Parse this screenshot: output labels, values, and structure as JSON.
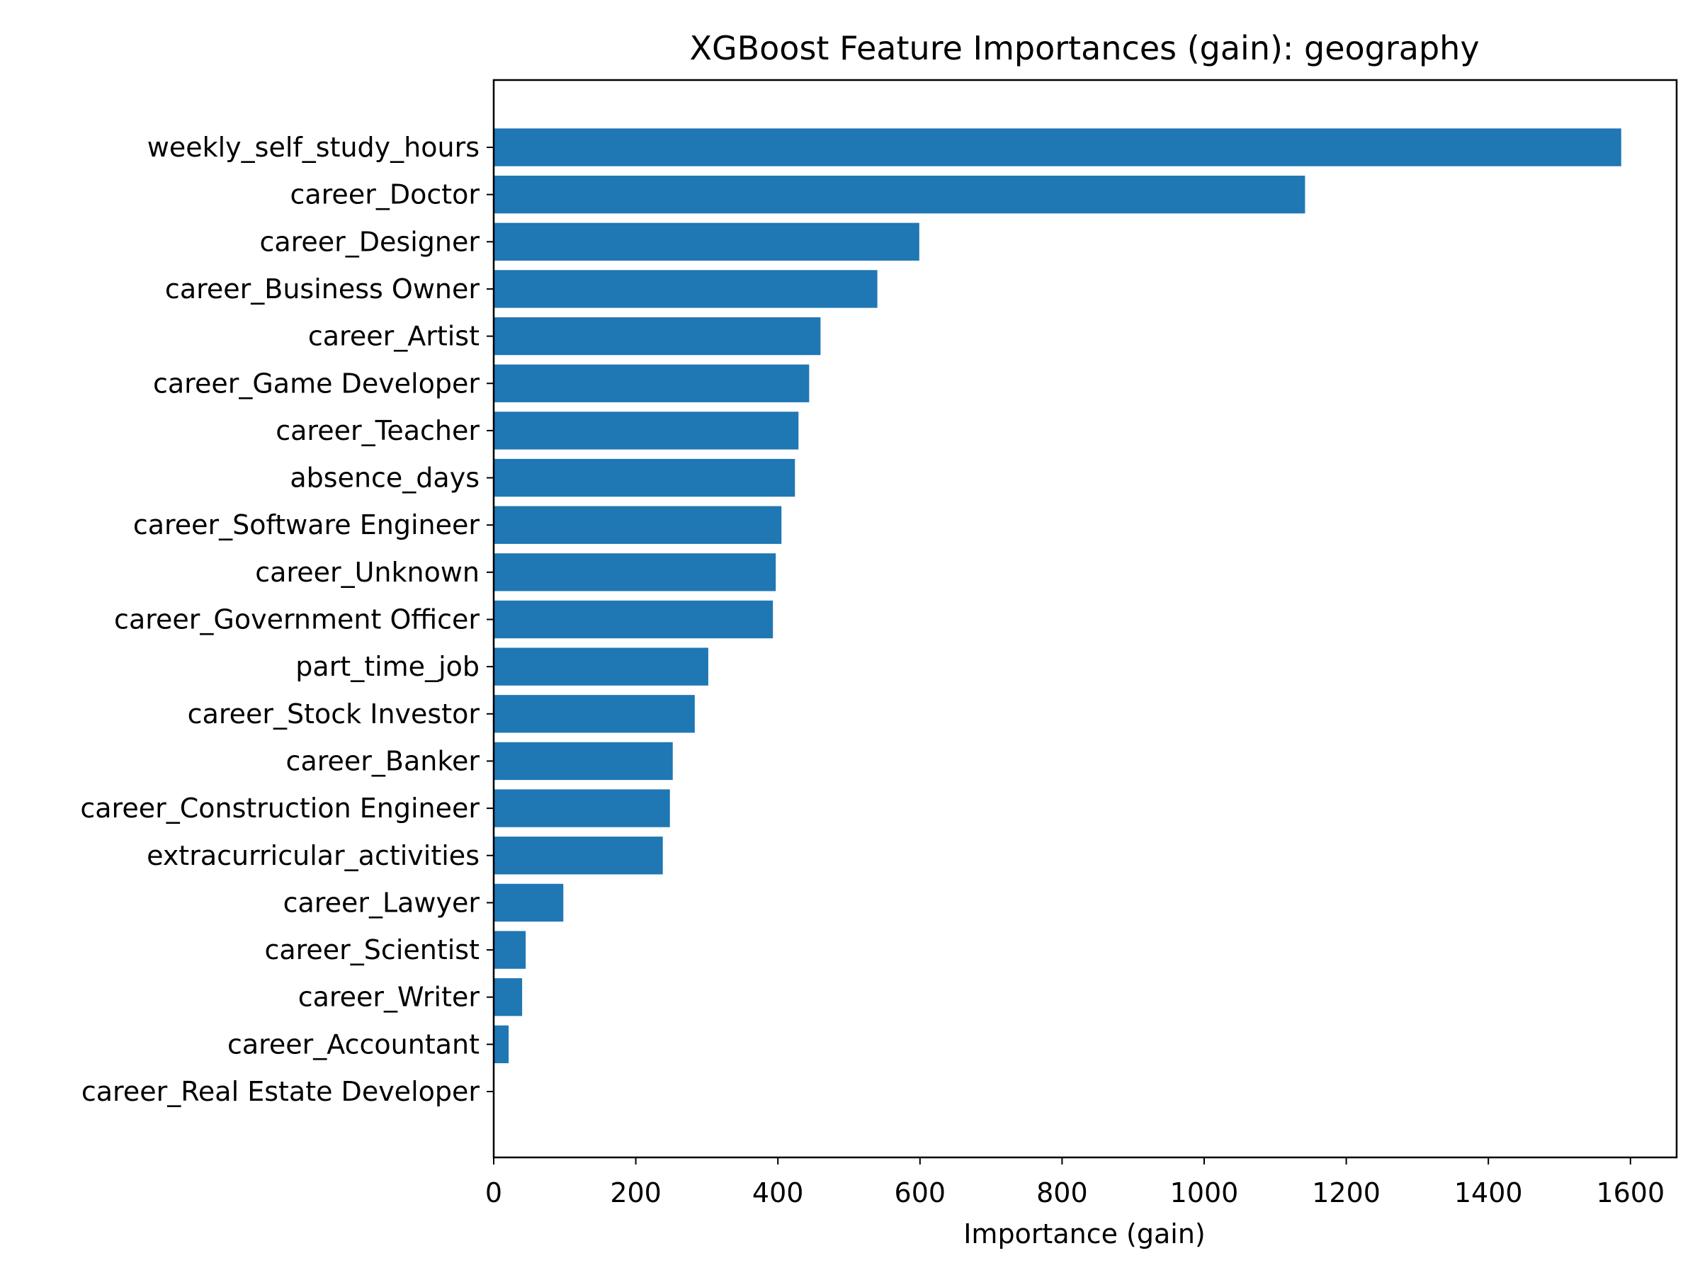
{
  "chart_data": {
    "type": "bar",
    "orientation": "horizontal",
    "title": "XGBoost Feature Importances (gain): geography",
    "xlabel": "Importance (gain)",
    "ylabel": "",
    "xlim": [
      0,
      1665
    ],
    "xticks": [
      0,
      200,
      400,
      600,
      800,
      1000,
      1200,
      1400,
      1600
    ],
    "grid": false,
    "legend": false,
    "bar_color": "#1f77b4",
    "categories": [
      "weekly_self_study_hours",
      "career_Doctor",
      "career_Designer",
      "career_Business Owner",
      "career_Artist",
      "career_Game Developer",
      "career_Teacher",
      "absence_days",
      "career_Software Engineer",
      "career_Unknown",
      "career_Government Officer",
      "part_time_job",
      "career_Stock Investor",
      "career_Banker",
      "career_Construction Engineer",
      "extracurricular_activities",
      "career_Lawyer",
      "career_Scientist",
      "career_Writer",
      "career_Accountant",
      "career_Real Estate Developer"
    ],
    "values": [
      1587,
      1142,
      599,
      540,
      460,
      444,
      429,
      424,
      405,
      397,
      393,
      302,
      283,
      252,
      248,
      238,
      98,
      45,
      40,
      21,
      0
    ]
  }
}
